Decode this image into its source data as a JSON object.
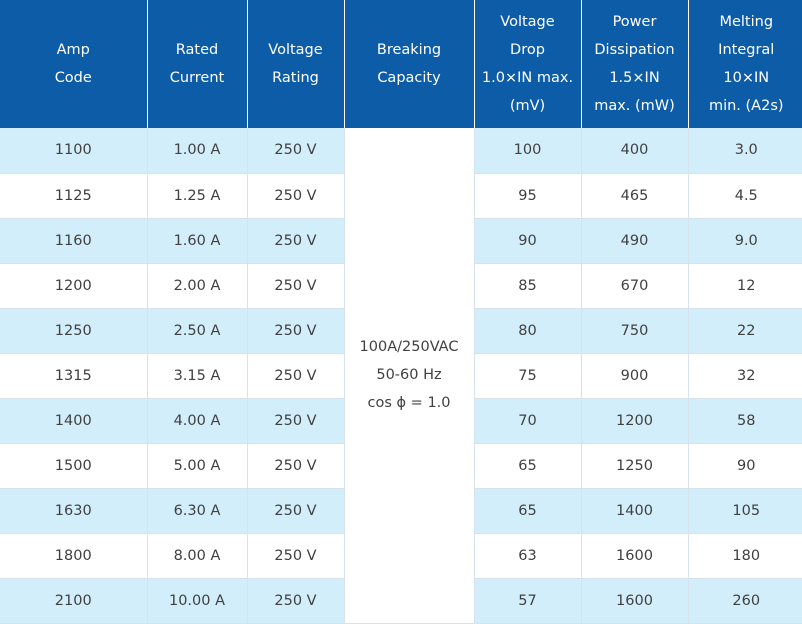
{
  "headers": [
    [
      "Amp",
      "Code"
    ],
    [
      "Rated",
      "Current"
    ],
    [
      "Voltage",
      "Rating"
    ],
    [
      "Breaking",
      "Capacity"
    ],
    [
      "Voltage",
      "Drop",
      "1.0×IN max.",
      "(mV)"
    ],
    [
      "Power",
      "Dissipation",
      "1.5×IN",
      "max. (mW)"
    ],
    [
      "Melting",
      "Integral",
      "10×IN",
      "min. (A2s)"
    ]
  ],
  "breaking_capacity": [
    "100A/250VAC",
    "50-60 Hz",
    "cos ϕ = 1.0"
  ],
  "rows": [
    {
      "amp_code": "1100",
      "rated_current": "1.00 A",
      "voltage_rating": "250 V",
      "voltage_drop": "100",
      "power_dissipation": "400",
      "melting_integral": "3.0"
    },
    {
      "amp_code": "1125",
      "rated_current": "1.25 A",
      "voltage_rating": "250 V",
      "voltage_drop": "95",
      "power_dissipation": "465",
      "melting_integral": "4.5"
    },
    {
      "amp_code": "1160",
      "rated_current": "1.60 A",
      "voltage_rating": "250 V",
      "voltage_drop": "90",
      "power_dissipation": "490",
      "melting_integral": "9.0"
    },
    {
      "amp_code": "1200",
      "rated_current": "2.00 A",
      "voltage_rating": "250 V",
      "voltage_drop": "85",
      "power_dissipation": "670",
      "melting_integral": "12"
    },
    {
      "amp_code": "1250",
      "rated_current": "2.50 A",
      "voltage_rating": "250 V",
      "voltage_drop": "80",
      "power_dissipation": "750",
      "melting_integral": "22"
    },
    {
      "amp_code": "1315",
      "rated_current": "3.15 A",
      "voltage_rating": "250 V",
      "voltage_drop": "75",
      "power_dissipation": "900",
      "melting_integral": "32"
    },
    {
      "amp_code": "1400",
      "rated_current": "4.00 A",
      "voltage_rating": "250 V",
      "voltage_drop": "70",
      "power_dissipation": "1200",
      "melting_integral": "58"
    },
    {
      "amp_code": "1500",
      "rated_current": "5.00 A",
      "voltage_rating": "250 V",
      "voltage_drop": "65",
      "power_dissipation": "1250",
      "melting_integral": "90"
    },
    {
      "amp_code": "1630",
      "rated_current": "6.30 A",
      "voltage_rating": "250 V",
      "voltage_drop": "65",
      "power_dissipation": "1400",
      "melting_integral": "105"
    },
    {
      "amp_code": "1800",
      "rated_current": "8.00 A",
      "voltage_rating": "250 V",
      "voltage_drop": "63",
      "power_dissipation": "1600",
      "melting_integral": "180"
    },
    {
      "amp_code": "2100",
      "rated_current": "10.00 A",
      "voltage_rating": "250 V",
      "voltage_drop": "57",
      "power_dissipation": "1600",
      "melting_integral": "260"
    }
  ],
  "colors": {
    "header_bg": "#0d5ca8",
    "header_text": "#ffffff",
    "row_alt_bg": "#d3eefb",
    "row_plain_bg": "#ffffff",
    "body_text": "#404040"
  }
}
